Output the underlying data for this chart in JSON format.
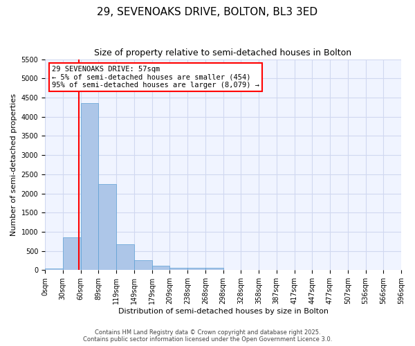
{
  "title": "29, SEVENOAKS DRIVE, BOLTON, BL3 3ED",
  "subtitle": "Size of property relative to semi-detached houses in Bolton",
  "xlabel": "Distribution of semi-detached houses by size in Bolton",
  "ylabel": "Number of semi-detached properties",
  "bar_color": "#adc6e8",
  "bar_edge_color": "#5a9fd4",
  "background_color": "#f0f4ff",
  "grid_color": "#d0d8f0",
  "bin_labels": [
    "0sqm",
    "30sqm",
    "60sqm",
    "89sqm",
    "119sqm",
    "149sqm",
    "179sqm",
    "209sqm",
    "238sqm",
    "268sqm",
    "298sqm",
    "328sqm",
    "358sqm",
    "387sqm",
    "417sqm",
    "447sqm",
    "477sqm",
    "507sqm",
    "536sqm",
    "566sqm",
    "596sqm"
  ],
  "bar_values": [
    50,
    850,
    4350,
    2250,
    680,
    250,
    115,
    65,
    55,
    55,
    0,
    0,
    0,
    0,
    0,
    0,
    0,
    0,
    0,
    0
  ],
  "ylim": [
    0,
    5500
  ],
  "yticks": [
    0,
    500,
    1000,
    1500,
    2000,
    2500,
    3000,
    3500,
    4000,
    4500,
    5000,
    5500
  ],
  "red_line_x": 1.9,
  "annotation_title": "29 SEVENOAKS DRIVE: 57sqm",
  "annotation_line1": "← 5% of semi-detached houses are smaller (454)",
  "annotation_line2": "95% of semi-detached houses are larger (8,079) →",
  "footer1": "Contains HM Land Registry data © Crown copyright and database right 2025.",
  "footer2": "Contains public sector information licensed under the Open Government Licence 3.0.",
  "title_fontsize": 11,
  "subtitle_fontsize": 9,
  "axis_label_fontsize": 8,
  "tick_fontsize": 7,
  "annotation_fontsize": 7.5,
  "footer_fontsize": 6
}
